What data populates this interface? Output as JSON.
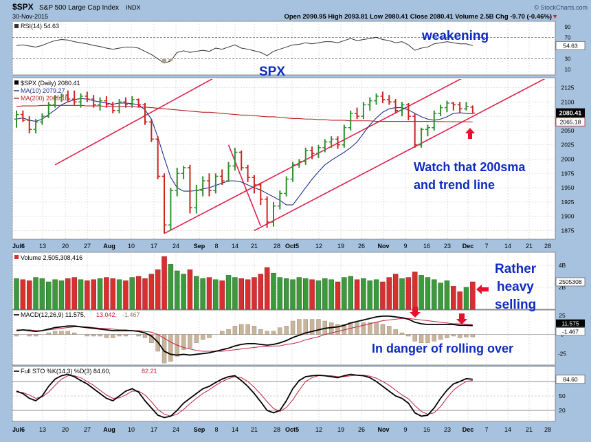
{
  "header": {
    "symbol": "$SPX",
    "name": "S&P 500 Large Cap Index",
    "exchange": "INDX",
    "date": "30-Nov-2015",
    "ohlc": "Open 2090.95  High 2093.81  Low 2080.41  Close 2080.41  Volume 2.5B  Chg -9.70 (-0.46%)",
    "ohlc_arrow": "▼",
    "watermark": "© StockCharts.com"
  },
  "annotations": {
    "weakening": "weakening",
    "spx": "SPX",
    "watch_line1": "Watch that 200sma",
    "watch_line2": "and trend line",
    "rather": "Rather",
    "heavy": "heavy",
    "selling": "selling",
    "rolling": "In danger of rolling over"
  },
  "colors": {
    "up": "#2f8f2f",
    "down": "#cc2222",
    "ma10": "#1c2e8c",
    "ma200": "#b81e1e",
    "channel": "#e0204a",
    "annotation": "#0d2bbf",
    "arrow": "#e8102c",
    "panel_bg": "#ffffff",
    "frame_bg": "#a7c2de"
  },
  "chart_data": {
    "type": "line",
    "title": "$SPX S&P 500 Large Cap Index INDX",
    "x_ticks": [
      "Jul6",
      "13",
      "20",
      "27",
      "Aug",
      "10",
      "17",
      "24",
      "Sep",
      "8",
      "14",
      "21",
      "28",
      "Oct5",
      "12",
      "19",
      "26",
      "Nov",
      "9",
      "16",
      "23",
      "Dec",
      "7",
      "14",
      "21",
      "28"
    ],
    "price": {
      "legend": "$SPX (Daily) 2080.41",
      "ylim": [
        1860,
        2140
      ],
      "y_ticks": [
        1875,
        1900,
        1925,
        1950,
        1975,
        2000,
        2025,
        2050,
        2075,
        2100,
        2125
      ],
      "close_label": "2080.41",
      "series": [
        {
          "name": "MA(10) 2079.27",
          "last_label": "2079.27",
          "values": [
            2070,
            2072,
            2068,
            2066,
            2070,
            2078,
            2086,
            2095,
            2100,
            2104,
            2106,
            2105,
            2102,
            2100,
            2098,
            2096,
            2098,
            2098,
            2097,
            2095,
            2086,
            2070,
            2038,
            2002,
            1968,
            1950,
            1944,
            1944,
            1945,
            1948,
            1950,
            1954,
            1958,
            1962,
            1962,
            1960,
            1955,
            1950,
            1946,
            1940,
            1934,
            1928,
            1920,
            1920,
            1935,
            1950,
            1965,
            1978,
            1990,
            1998,
            2005,
            2012,
            2020,
            2030,
            2045,
            2060,
            2072,
            2082,
            2088,
            2090,
            2090,
            2086,
            2080,
            2074,
            2070,
            2068,
            2070,
            2074,
            2080,
            2081,
            2080,
            2079.27
          ]
        },
        {
          "name": "MA(200) 2065.18",
          "last_label": "2065.18",
          "values": [
            2092,
            2093,
            2093,
            2093,
            2094,
            2094,
            2094,
            2094,
            2094,
            2094,
            2094,
            2093,
            2093,
            2093,
            2092,
            2092,
            2092,
            2092,
            2092,
            2091,
            2091,
            2090,
            2089,
            2088,
            2087,
            2086,
            2085,
            2084,
            2083,
            2082,
            2082,
            2081,
            2080,
            2079,
            2078,
            2077,
            2077,
            2076,
            2075,
            2074,
            2074,
            2073,
            2072,
            2071,
            2071,
            2070,
            2070,
            2069,
            2069,
            2068,
            2068,
            2068,
            2067,
            2067,
            2067,
            2067,
            2066,
            2066,
            2066,
            2066,
            2066,
            2066,
            2066,
            2066,
            2066,
            2065.8,
            2065.6,
            2065.5,
            2065.4,
            2065.3,
            2065.2,
            2065.18
          ]
        }
      ],
      "ohlc": [
        [
          2070,
          2085,
          2055,
          2078
        ],
        [
          2078,
          2085,
          2065,
          2068
        ],
        [
          2068,
          2075,
          2045,
          2052
        ],
        [
          2052,
          2070,
          2045,
          2065
        ],
        [
          2065,
          2080,
          2060,
          2075
        ],
        [
          2075,
          2100,
          2072,
          2095
        ],
        [
          2095,
          2112,
          2090,
          2108
        ],
        [
          2108,
          2115,
          2100,
          2112
        ],
        [
          2112,
          2120,
          2100,
          2105
        ],
        [
          2105,
          2120,
          2095,
          2100
        ],
        [
          2100,
          2115,
          2090,
          2110
        ],
        [
          2110,
          2118,
          2100,
          2105
        ],
        [
          2105,
          2112,
          2090,
          2095
        ],
        [
          2095,
          2108,
          2085,
          2102
        ],
        [
          2102,
          2110,
          2090,
          2095
        ],
        [
          2095,
          2100,
          2080,
          2085
        ],
        [
          2085,
          2105,
          2080,
          2100
        ],
        [
          2100,
          2108,
          2090,
          2096
        ],
        [
          2096,
          2110,
          2090,
          2104
        ],
        [
          2104,
          2106,
          2090,
          2095
        ],
        [
          2095,
          2098,
          2060,
          2065
        ],
        [
          2065,
          2070,
          2030,
          2035
        ],
        [
          2035,
          2040,
          1965,
          1970
        ],
        [
          1970,
          1975,
          1870,
          1885
        ],
        [
          1885,
          1950,
          1875,
          1945
        ],
        [
          1945,
          1985,
          1935,
          1975
        ],
        [
          1975,
          1988,
          1965,
          1985
        ],
        [
          1985,
          1990,
          1905,
          1915
        ],
        [
          1915,
          1955,
          1905,
          1945
        ],
        [
          1945,
          1970,
          1935,
          1962
        ],
        [
          1962,
          1975,
          1935,
          1945
        ],
        [
          1945,
          1975,
          1940,
          1970
        ],
        [
          1970,
          1982,
          1955,
          1962
        ],
        [
          1962,
          1995,
          1960,
          1988
        ],
        [
          1988,
          2020,
          1980,
          2012
        ],
        [
          2012,
          2015,
          1980,
          1985
        ],
        [
          1985,
          1990,
          1960,
          1968
        ],
        [
          1968,
          1972,
          1940,
          1955
        ],
        [
          1955,
          1958,
          1920,
          1930
        ],
        [
          1930,
          1935,
          1880,
          1890
        ],
        [
          1890,
          1925,
          1882,
          1918
        ],
        [
          1918,
          1945,
          1912,
          1940
        ],
        [
          1940,
          1970,
          1935,
          1965
        ],
        [
          1965,
          1995,
          1960,
          1990
        ],
        [
          1990,
          2000,
          1985,
          1996
        ],
        [
          1996,
          2020,
          1990,
          2015
        ],
        [
          2015,
          2022,
          2000,
          2010
        ],
        [
          2010,
          2025,
          2002,
          2020
        ],
        [
          2020,
          2035,
          2012,
          2030
        ],
        [
          2030,
          2040,
          2020,
          2035
        ],
        [
          2035,
          2040,
          2018,
          2025
        ],
        [
          2025,
          2060,
          2020,
          2055
        ],
        [
          2055,
          2085,
          2050,
          2080
        ],
        [
          2080,
          2090,
          2070,
          2075
        ],
        [
          2075,
          2100,
          2070,
          2095
        ],
        [
          2095,
          2108,
          2085,
          2102
        ],
        [
          2102,
          2115,
          2095,
          2110
        ],
        [
          2110,
          2118,
          2098,
          2104
        ],
        [
          2104,
          2112,
          2095,
          2100
        ],
        [
          2100,
          2105,
          2080,
          2085
        ],
        [
          2085,
          2100,
          2075,
          2095
        ],
        [
          2095,
          2098,
          2068,
          2075
        ],
        [
          2075,
          2080,
          2020,
          2025
        ],
        [
          2025,
          2055,
          2020,
          2052
        ],
        [
          2052,
          2060,
          2040,
          2055
        ],
        [
          2055,
          2085,
          2050,
          2080
        ],
        [
          2080,
          2095,
          2075,
          2090
        ],
        [
          2090,
          2102,
          2082,
          2098
        ],
        [
          2098,
          2100,
          2085,
          2095
        ],
        [
          2095,
          2100,
          2080,
          2088
        ],
        [
          2088,
          2100,
          2085,
          2092
        ],
        [
          2090.95,
          2093.81,
          2080.41,
          2080.41
        ]
      ],
      "channel_lines": [
        {
          "name": "upper channel",
          "from": [
            6,
            1990
          ],
          "to": [
            98,
            2555
          ]
        },
        {
          "name": "lower channel",
          "from": [
            23,
            1870
          ],
          "to": [
            99,
            2315
          ]
        },
        {
          "name": "mid channel",
          "from": [
            37,
            1875
          ],
          "to": [
            100,
            2245
          ]
        },
        {
          "name": "down leg",
          "from": [
            33,
            2025
          ],
          "to": [
            38,
            1883
          ]
        }
      ]
    },
    "rsi": {
      "legend": "RSI(14) 54.63",
      "last_label": "54.63",
      "ylim": [
        0,
        100
      ],
      "y_ticks": [
        10,
        30,
        70,
        90
      ],
      "levels": [
        30,
        70
      ],
      "values": [
        55,
        56,
        54,
        52,
        55,
        60,
        64,
        66,
        65,
        62,
        60,
        58,
        55,
        53,
        50,
        48,
        50,
        52,
        52,
        50,
        44,
        38,
        30,
        22,
        26,
        42,
        45,
        42,
        44,
        46,
        44,
        50,
        48,
        52,
        56,
        50,
        48,
        45,
        42,
        36,
        44,
        48,
        52,
        56,
        57,
        60,
        58,
        60,
        62,
        62,
        60,
        64,
        68,
        64,
        66,
        68,
        70,
        66,
        64,
        60,
        62,
        56,
        46,
        50,
        52,
        58,
        60,
        62,
        60,
        58,
        58,
        54.63
      ]
    },
    "volume": {
      "legend": "Volume 2,505,308,416",
      "last_label": "2505308",
      "ylim": [
        0,
        5
      ],
      "y_ticks_labels": [
        "2B",
        "4B"
      ],
      "y_ticks": [
        2,
        4
      ],
      "values": [
        2.8,
        2.7,
        2.6,
        2.9,
        2.8,
        2.5,
        2.7,
        2.6,
        2.8,
        2.9,
        2.7,
        2.6,
        2.7,
        2.8,
        2.9,
        2.8,
        2.7,
        2.6,
        2.9,
        3.0,
        2.8,
        3.2,
        3.6,
        4.8,
        4.1,
        3.5,
        3.2,
        3.6,
        3.0,
        2.8,
        2.9,
        2.7,
        2.6,
        3.1,
        2.9,
        2.8,
        2.7,
        2.9,
        3.2,
        3.8,
        3.3,
        2.9,
        2.8,
        2.7,
        2.9,
        2.8,
        2.7,
        2.6,
        2.8,
        2.7,
        2.5,
        2.9,
        3.0,
        2.7,
        2.8,
        2.6,
        2.7,
        2.5,
        2.9,
        3.2,
        2.8,
        2.9,
        3.4,
        3.1,
        2.9,
        2.7,
        2.4,
        2.6,
        2.1,
        1.6,
        2.0,
        2.5
      ]
    },
    "macd": {
      "legend_label": "MACD(12,26,9) 11.575,",
      "legend_signal": "13.042,",
      "legend_hist": "-1.467",
      "macd_label": "11.575",
      "hist_label": "-1.467",
      "ylim": [
        -40,
        32
      ],
      "y_ticks": [
        -25,
        0,
        25
      ],
      "macd": [
        5,
        6,
        5,
        4,
        5,
        7,
        9,
        10,
        11,
        11,
        10,
        9,
        8,
        7,
        6,
        5,
        5,
        5,
        5,
        4,
        2,
        -2,
        -10,
        -22,
        -26,
        -27,
        -26,
        -27,
        -26,
        -25,
        -24,
        -22,
        -20,
        -18,
        -15,
        -13,
        -12,
        -12,
        -13,
        -14,
        -13,
        -11,
        -8,
        -4,
        -1,
        2,
        4,
        6,
        8,
        9,
        10,
        12,
        15,
        17,
        19,
        21,
        23,
        24,
        24,
        23,
        22,
        20,
        16,
        14,
        13,
        13,
        13,
        13,
        13,
        12,
        12,
        11.575
      ],
      "signal": [
        6,
        6,
        6,
        5,
        5,
        6,
        7,
        8,
        9,
        10,
        10,
        10,
        9,
        8,
        8,
        7,
        6,
        6,
        5,
        5,
        4,
        3,
        0,
        -5,
        -10,
        -14,
        -17,
        -19,
        -21,
        -22,
        -22,
        -22,
        -22,
        -21,
        -20,
        -19,
        -18,
        -17,
        -16,
        -16,
        -15,
        -15,
        -13,
        -12,
        -10,
        -7,
        -5,
        -3,
        0,
        2,
        4,
        6,
        8,
        10,
        12,
        14,
        16,
        18,
        19,
        20,
        21,
        21,
        20,
        19,
        18,
        17,
        16,
        15,
        14,
        14,
        13.5,
        13.042
      ]
    },
    "stoch": {
      "legend_k": "Full STO %K(14,3) %D(3) 84.60,",
      "legend_d": "82.21",
      "k_label": "84.60",
      "ylim": [
        0,
        100
      ],
      "y_ticks": [
        20,
        50,
        80
      ],
      "levels": [
        20,
        80
      ],
      "k": [
        60,
        55,
        45,
        40,
        50,
        70,
        85,
        92,
        95,
        90,
        82,
        75,
        65,
        55,
        45,
        40,
        50,
        60,
        65,
        58,
        40,
        25,
        10,
        5,
        8,
        20,
        35,
        45,
        55,
        65,
        70,
        78,
        85,
        90,
        92,
        82,
        70,
        55,
        38,
        20,
        15,
        20,
        40,
        65,
        82,
        90,
        92,
        93,
        92,
        90,
        88,
        92,
        95,
        93,
        92,
        88,
        80,
        70,
        60,
        50,
        45,
        35,
        15,
        8,
        10,
        25,
        45,
        62,
        75,
        80,
        86,
        84.6
      ],
      "d": [
        58,
        57,
        52,
        45,
        48,
        58,
        72,
        85,
        92,
        92,
        88,
        80,
        72,
        62,
        52,
        45,
        46,
        52,
        60,
        60,
        52,
        38,
        22,
        12,
        8,
        12,
        22,
        34,
        45,
        55,
        63,
        72,
        80,
        86,
        90,
        88,
        80,
        68,
        54,
        38,
        24,
        18,
        26,
        42,
        62,
        80,
        88,
        92,
        92,
        92,
        90,
        90,
        92,
        93,
        93,
        91,
        87,
        80,
        72,
        62,
        52,
        44,
        30,
        18,
        12,
        15,
        28,
        46,
        62,
        72,
        80,
        82.21
      ]
    }
  }
}
